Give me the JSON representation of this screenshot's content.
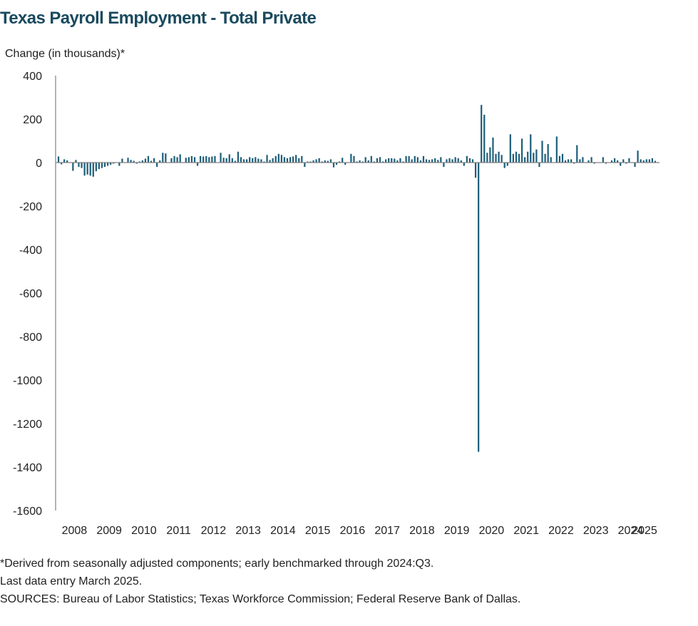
{
  "footnotes": {
    "line1": "*Derived from seasonally adjusted components; early benchmarked through 2024:Q3.",
    "line2": "Last data entry March 2025.",
    "line3": "SOURCES:  Bureau of Labor Statistics; Texas Workforce Commission;  Federal Reserve Bank of Dallas."
  },
  "colors": {
    "bar": "#1f5f7a",
    "axis": "#808080",
    "title": "#1a4a5e"
  },
  "chart_data": {
    "type": "bar",
    "title": "Texas Payroll Employment - Total Private",
    "ylabel": "Change (in thousands)*",
    "xlabel": "",
    "ylim": [
      -1600,
      400
    ],
    "yticks": [
      400,
      200,
      0,
      -200,
      -400,
      -600,
      -800,
      -1000,
      -1200,
      -1400,
      -1600
    ],
    "xticks": [
      "2008",
      "2009",
      "2010",
      "2011",
      "2012",
      "2013",
      "2014",
      "2015",
      "2016",
      "2017",
      "2018",
      "2019",
      "2020",
      "2021",
      "2022",
      "2023",
      "2024",
      "2025"
    ],
    "x_start": "2008-01",
    "frequency": "monthly",
    "values": [
      28,
      -8,
      15,
      10,
      -2,
      -38,
      12,
      -20,
      -25,
      -60,
      -55,
      -60,
      -65,
      -40,
      -30,
      -25,
      -20,
      -15,
      -10,
      -5,
      0,
      -15,
      18,
      0,
      22,
      12,
      8,
      -5,
      5,
      10,
      18,
      30,
      8,
      20,
      -20,
      10,
      45,
      42,
      0,
      20,
      30,
      25,
      38,
      0,
      22,
      25,
      30,
      25,
      -15,
      30,
      28,
      30,
      25,
      28,
      30,
      0,
      45,
      22,
      20,
      38,
      20,
      8,
      50,
      25,
      15,
      15,
      25,
      20,
      25,
      18,
      15,
      5,
      35,
      12,
      20,
      30,
      40,
      35,
      25,
      20,
      25,
      28,
      35,
      20,
      30,
      -20,
      5,
      5,
      10,
      15,
      20,
      5,
      10,
      8,
      15,
      -22,
      -10,
      5,
      22,
      -10,
      0,
      40,
      30,
      5,
      10,
      5,
      25,
      10,
      30,
      5,
      20,
      25,
      5,
      15,
      20,
      20,
      18,
      10,
      20,
      5,
      30,
      30,
      15,
      30,
      25,
      10,
      30,
      15,
      12,
      15,
      20,
      12,
      25,
      -20,
      15,
      20,
      15,
      25,
      20,
      10,
      -15,
      30,
      20,
      15,
      -70,
      -1330,
      265,
      220,
      45,
      70,
      115,
      40,
      50,
      35,
      -25,
      -15,
      130,
      40,
      50,
      40,
      110,
      25,
      50,
      130,
      45,
      60,
      -20,
      100,
      40,
      85,
      25,
      0,
      120,
      30,
      40,
      10,
      15,
      15,
      -5,
      80,
      15,
      25,
      0,
      10,
      25,
      -5,
      0,
      0,
      25,
      -5,
      0,
      10,
      20,
      10,
      -15,
      15,
      -5,
      20,
      0,
      -20,
      55,
      15,
      10,
      15,
      15,
      20,
      8
    ]
  }
}
